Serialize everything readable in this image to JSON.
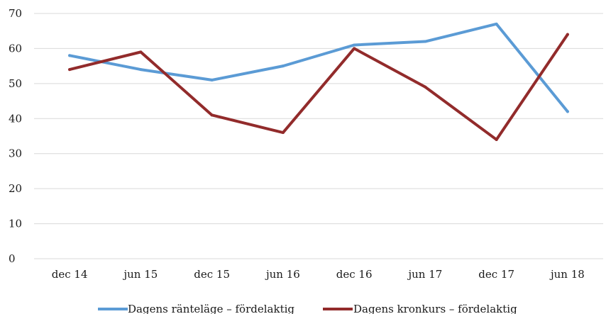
{
  "chart_data": {
    "type": "line",
    "title": "",
    "xlabel": "",
    "ylabel": "",
    "categories": [
      "dec 14",
      "jun 15",
      "dec 15",
      "jun 16",
      "dec 16",
      "jun 17",
      "dec 17",
      "jun 18"
    ],
    "ylim": [
      0,
      70
    ],
    "yticks": [
      0,
      10,
      20,
      30,
      40,
      50,
      60,
      70
    ],
    "grid": true,
    "legend_position": "bottom",
    "series": [
      {
        "name": "Dagens ränteläge – fördelaktig",
        "color": "#5b9bd5",
        "values": [
          58,
          54,
          51,
          55,
          61,
          62,
          67,
          42
        ]
      },
      {
        "name": "Dagens kronkurs – fördelaktig",
        "color": "#922b2b",
        "values": [
          54,
          59,
          41,
          36,
          60,
          49,
          34,
          64
        ]
      }
    ]
  }
}
